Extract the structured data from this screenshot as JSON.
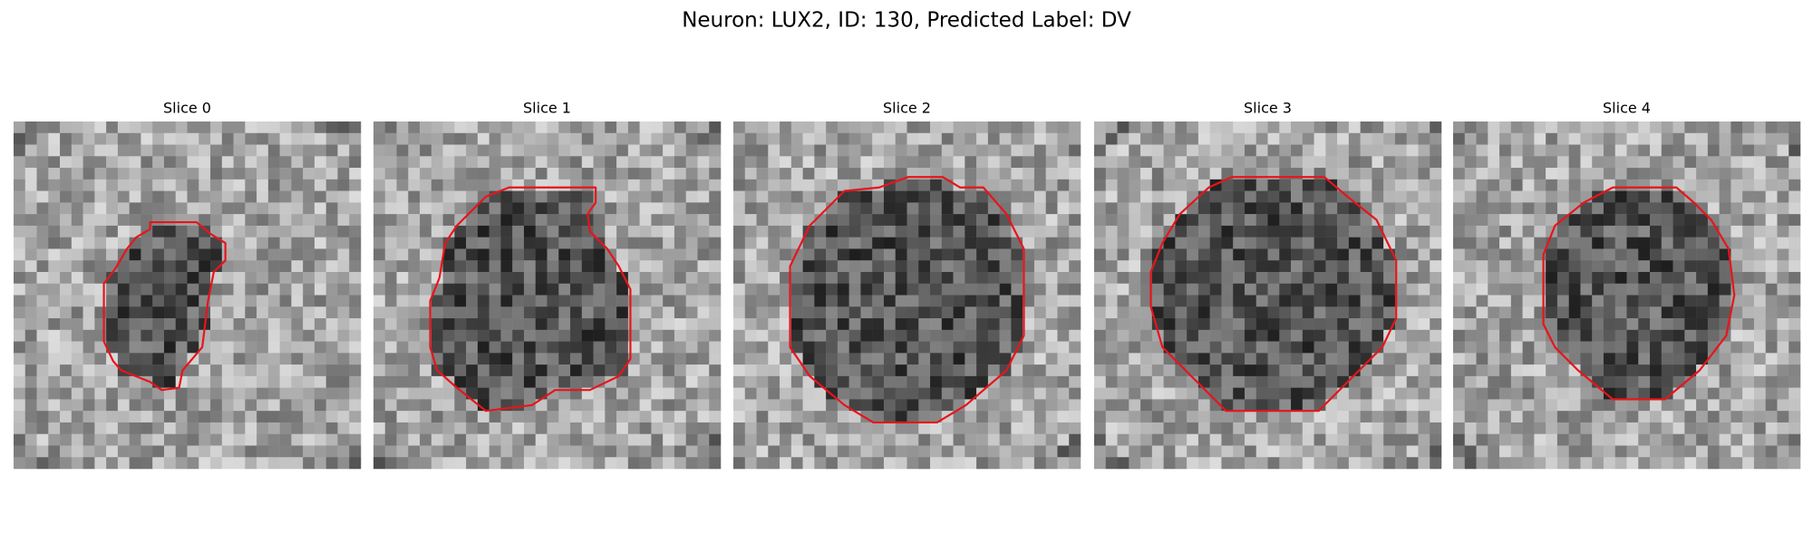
{
  "figure": {
    "title": "Neuron: LUX2, ID: 130, Predicted Label: DV",
    "panels": [
      {
        "title": "Slice 0"
      },
      {
        "title": "Slice 1"
      },
      {
        "title": "Slice 2"
      },
      {
        "title": "Slice 3"
      },
      {
        "title": "Slice 4"
      }
    ]
  }
}
